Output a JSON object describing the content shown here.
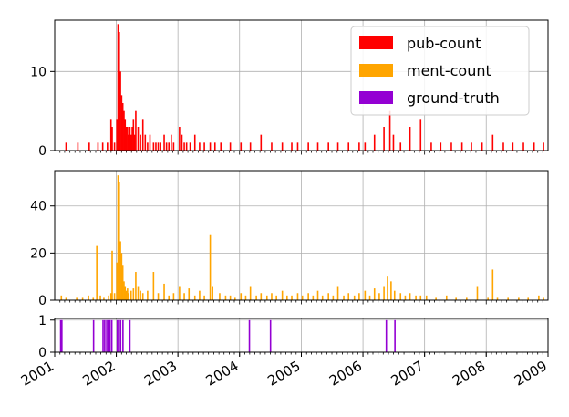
{
  "chart_data": {
    "type": "bar",
    "x_range": [
      "2001-01-01",
      "2009-01-01"
    ],
    "x_ticks": [
      "2001",
      "2002",
      "2003",
      "2004",
      "2005",
      "2006",
      "2007",
      "2008",
      "2009"
    ],
    "grid": true,
    "legend_placement": "top-right",
    "legend": [
      {
        "name": "pub-count",
        "color": "#ff0000"
      },
      {
        "name": "ment-count",
        "color": "#ffa500"
      },
      {
        "name": "ground-truth",
        "color": "#9400d3"
      }
    ],
    "panels": [
      {
        "series": "pub-count",
        "color": "#ff0000",
        "ylim": [
          0,
          16.5
        ],
        "yticks": [
          0,
          10
        ],
        "bars": [
          [
            "2001-03-05",
            1
          ],
          [
            "2001-05-14",
            1
          ],
          [
            "2001-07-20",
            1
          ],
          [
            "2001-09-10",
            1
          ],
          [
            "2001-10-08",
            1
          ],
          [
            "2001-11-05",
            1
          ],
          [
            "2001-11-26",
            4
          ],
          [
            "2001-12-03",
            3
          ],
          [
            "2001-12-17",
            1
          ],
          [
            "2001-12-31",
            4
          ],
          [
            "2002-01-07",
            16
          ],
          [
            "2002-01-14",
            15
          ],
          [
            "2002-01-21",
            10
          ],
          [
            "2002-01-28",
            7
          ],
          [
            "2002-02-04",
            6
          ],
          [
            "2002-02-11",
            5
          ],
          [
            "2002-02-18",
            4
          ],
          [
            "2002-02-25",
            3
          ],
          [
            "2002-03-04",
            3
          ],
          [
            "2002-03-11",
            2
          ],
          [
            "2002-03-18",
            3
          ],
          [
            "2002-03-25",
            2
          ],
          [
            "2002-04-01",
            3
          ],
          [
            "2002-04-08",
            4
          ],
          [
            "2002-04-15",
            2
          ],
          [
            "2002-04-22",
            5
          ],
          [
            "2002-05-06",
            3
          ],
          [
            "2002-05-20",
            2
          ],
          [
            "2002-06-03",
            4
          ],
          [
            "2002-06-17",
            2
          ],
          [
            "2002-07-01",
            1
          ],
          [
            "2002-07-15",
            2
          ],
          [
            "2002-08-05",
            1
          ],
          [
            "2002-08-19",
            1
          ],
          [
            "2002-09-02",
            1
          ],
          [
            "2002-09-16",
            1
          ],
          [
            "2002-10-07",
            2
          ],
          [
            "2002-10-21",
            1
          ],
          [
            "2002-11-04",
            1
          ],
          [
            "2002-11-18",
            2
          ],
          [
            "2002-12-02",
            1
          ],
          [
            "2003-01-06",
            3
          ],
          [
            "2003-01-20",
            2
          ],
          [
            "2003-02-03",
            1
          ],
          [
            "2003-02-17",
            1
          ],
          [
            "2003-03-10",
            1
          ],
          [
            "2003-04-07",
            2
          ],
          [
            "2003-05-05",
            1
          ],
          [
            "2003-06-02",
            1
          ],
          [
            "2003-07-07",
            1
          ],
          [
            "2003-08-04",
            1
          ],
          [
            "2003-09-08",
            1
          ],
          [
            "2003-11-03",
            1
          ],
          [
            "2004-01-05",
            1
          ],
          [
            "2004-03-01",
            1
          ],
          [
            "2004-05-03",
            2
          ],
          [
            "2004-07-05",
            1
          ],
          [
            "2004-09-06",
            1
          ],
          [
            "2004-11-01",
            1
          ],
          [
            "2004-12-06",
            1
          ],
          [
            "2005-02-07",
            1
          ],
          [
            "2005-04-04",
            1
          ],
          [
            "2005-06-06",
            1
          ],
          [
            "2005-08-01",
            1
          ],
          [
            "2005-10-03",
            1
          ],
          [
            "2005-12-05",
            1
          ],
          [
            "2006-01-09",
            1
          ],
          [
            "2006-03-06",
            2
          ],
          [
            "2006-05-01",
            3
          ],
          [
            "2006-06-05",
            5
          ],
          [
            "2006-06-26",
            2
          ],
          [
            "2006-08-07",
            1
          ],
          [
            "2006-10-02",
            3
          ],
          [
            "2006-12-04",
            4
          ],
          [
            "2007-02-05",
            1
          ],
          [
            "2007-04-02",
            1
          ],
          [
            "2007-06-04",
            1
          ],
          [
            "2007-08-06",
            1
          ],
          [
            "2007-10-01",
            1
          ],
          [
            "2007-12-03",
            1
          ],
          [
            "2008-02-04",
            2
          ],
          [
            "2008-04-07",
            1
          ],
          [
            "2008-06-02",
            1
          ],
          [
            "2008-08-04",
            1
          ],
          [
            "2008-10-06",
            1
          ],
          [
            "2008-12-01",
            1
          ]
        ]
      },
      {
        "series": "ment-count",
        "color": "#ffa500",
        "ylim": [
          0,
          55
        ],
        "yticks": [
          0,
          20,
          40
        ],
        "bars": [
          [
            "2001-02-05",
            2
          ],
          [
            "2001-03-05",
            1
          ],
          [
            "2001-05-07",
            1
          ],
          [
            "2001-06-11",
            1
          ],
          [
            "2001-07-16",
            2
          ],
          [
            "2001-08-13",
            1
          ],
          [
            "2001-09-03",
            23
          ],
          [
            "2001-09-24",
            2
          ],
          [
            "2001-10-15",
            1
          ],
          [
            "2001-11-12",
            2
          ],
          [
            "2001-11-26",
            3
          ],
          [
            "2001-12-03",
            21
          ],
          [
            "2001-12-17",
            3
          ],
          [
            "2001-12-31",
            16
          ],
          [
            "2002-01-07",
            53
          ],
          [
            "2002-01-14",
            50
          ],
          [
            "2002-01-21",
            25
          ],
          [
            "2002-01-28",
            20
          ],
          [
            "2002-02-04",
            15
          ],
          [
            "2002-02-11",
            8
          ],
          [
            "2002-02-18",
            6
          ],
          [
            "2002-02-25",
            4
          ],
          [
            "2002-03-04",
            5
          ],
          [
            "2002-03-11",
            3
          ],
          [
            "2002-03-25",
            4
          ],
          [
            "2002-04-08",
            5
          ],
          [
            "2002-04-22",
            12
          ],
          [
            "2002-05-06",
            6
          ],
          [
            "2002-05-20",
            4
          ],
          [
            "2002-06-03",
            3
          ],
          [
            "2002-07-01",
            4
          ],
          [
            "2002-08-05",
            12
          ],
          [
            "2002-09-02",
            3
          ],
          [
            "2002-10-07",
            7
          ],
          [
            "2002-11-04",
            2
          ],
          [
            "2002-12-02",
            3
          ],
          [
            "2003-01-06",
            6
          ],
          [
            "2003-02-03",
            3
          ],
          [
            "2003-03-03",
            5
          ],
          [
            "2003-04-07",
            2
          ],
          [
            "2003-05-05",
            4
          ],
          [
            "2003-06-02",
            2
          ],
          [
            "2003-07-07",
            28
          ],
          [
            "2003-07-21",
            6
          ],
          [
            "2003-09-01",
            3
          ],
          [
            "2003-10-06",
            2
          ],
          [
            "2003-11-03",
            2
          ],
          [
            "2003-12-01",
            1
          ],
          [
            "2004-01-05",
            3
          ],
          [
            "2004-02-02",
            2
          ],
          [
            "2004-03-01",
            6
          ],
          [
            "2004-04-05",
            2
          ],
          [
            "2004-05-03",
            3
          ],
          [
            "2004-06-07",
            2
          ],
          [
            "2004-07-05",
            3
          ],
          [
            "2004-08-02",
            2
          ],
          [
            "2004-09-06",
            4
          ],
          [
            "2004-10-04",
            2
          ],
          [
            "2004-11-01",
            2
          ],
          [
            "2004-12-06",
            3
          ],
          [
            "2005-01-03",
            2
          ],
          [
            "2005-02-07",
            3
          ],
          [
            "2005-03-07",
            2
          ],
          [
            "2005-04-04",
            4
          ],
          [
            "2005-05-02",
            2
          ],
          [
            "2005-06-06",
            3
          ],
          [
            "2005-07-04",
            2
          ],
          [
            "2005-08-01",
            6
          ],
          [
            "2005-09-05",
            2
          ],
          [
            "2005-10-03",
            3
          ],
          [
            "2005-11-07",
            2
          ],
          [
            "2005-12-05",
            3
          ],
          [
            "2006-01-09",
            4
          ],
          [
            "2006-02-06",
            2
          ],
          [
            "2006-03-06",
            5
          ],
          [
            "2006-04-03",
            3
          ],
          [
            "2006-05-01",
            6
          ],
          [
            "2006-05-22",
            10
          ],
          [
            "2006-06-12",
            8
          ],
          [
            "2006-07-03",
            4
          ],
          [
            "2006-08-07",
            3
          ],
          [
            "2006-09-04",
            2
          ],
          [
            "2006-10-02",
            3
          ],
          [
            "2006-11-06",
            2
          ],
          [
            "2006-12-04",
            2
          ],
          [
            "2007-01-08",
            2
          ],
          [
            "2007-03-05",
            1
          ],
          [
            "2007-05-07",
            2
          ],
          [
            "2007-07-02",
            1
          ],
          [
            "2007-09-03",
            1
          ],
          [
            "2007-11-05",
            6
          ],
          [
            "2008-01-07",
            1
          ],
          [
            "2008-02-04",
            13
          ],
          [
            "2008-03-03",
            1
          ],
          [
            "2008-05-05",
            1
          ],
          [
            "2008-07-07",
            1
          ],
          [
            "2008-09-01",
            1
          ],
          [
            "2008-11-03",
            2
          ],
          [
            "2008-12-01",
            1
          ]
        ]
      },
      {
        "series": "ground-truth",
        "color": "#9400d3",
        "ylim": [
          0,
          1.05
        ],
        "yticks": [
          0,
          1
        ],
        "bars": [
          [
            "2001-02-01",
            1
          ],
          [
            "2001-02-08",
            1
          ],
          [
            "2001-08-15",
            1
          ],
          [
            "2001-10-10",
            1
          ],
          [
            "2001-10-20",
            1
          ],
          [
            "2001-11-01",
            1
          ],
          [
            "2001-11-10",
            1
          ],
          [
            "2001-11-20",
            1
          ],
          [
            "2001-12-01",
            1
          ],
          [
            "2002-01-03",
            1
          ],
          [
            "2002-01-12",
            1
          ],
          [
            "2002-01-22",
            1
          ],
          [
            "2002-02-05",
            1
          ],
          [
            "2002-03-18",
            1
          ],
          [
            "2004-02-24",
            1
          ],
          [
            "2004-06-28",
            1
          ],
          [
            "2006-05-15",
            1
          ],
          [
            "2006-07-05",
            1
          ]
        ]
      }
    ]
  }
}
